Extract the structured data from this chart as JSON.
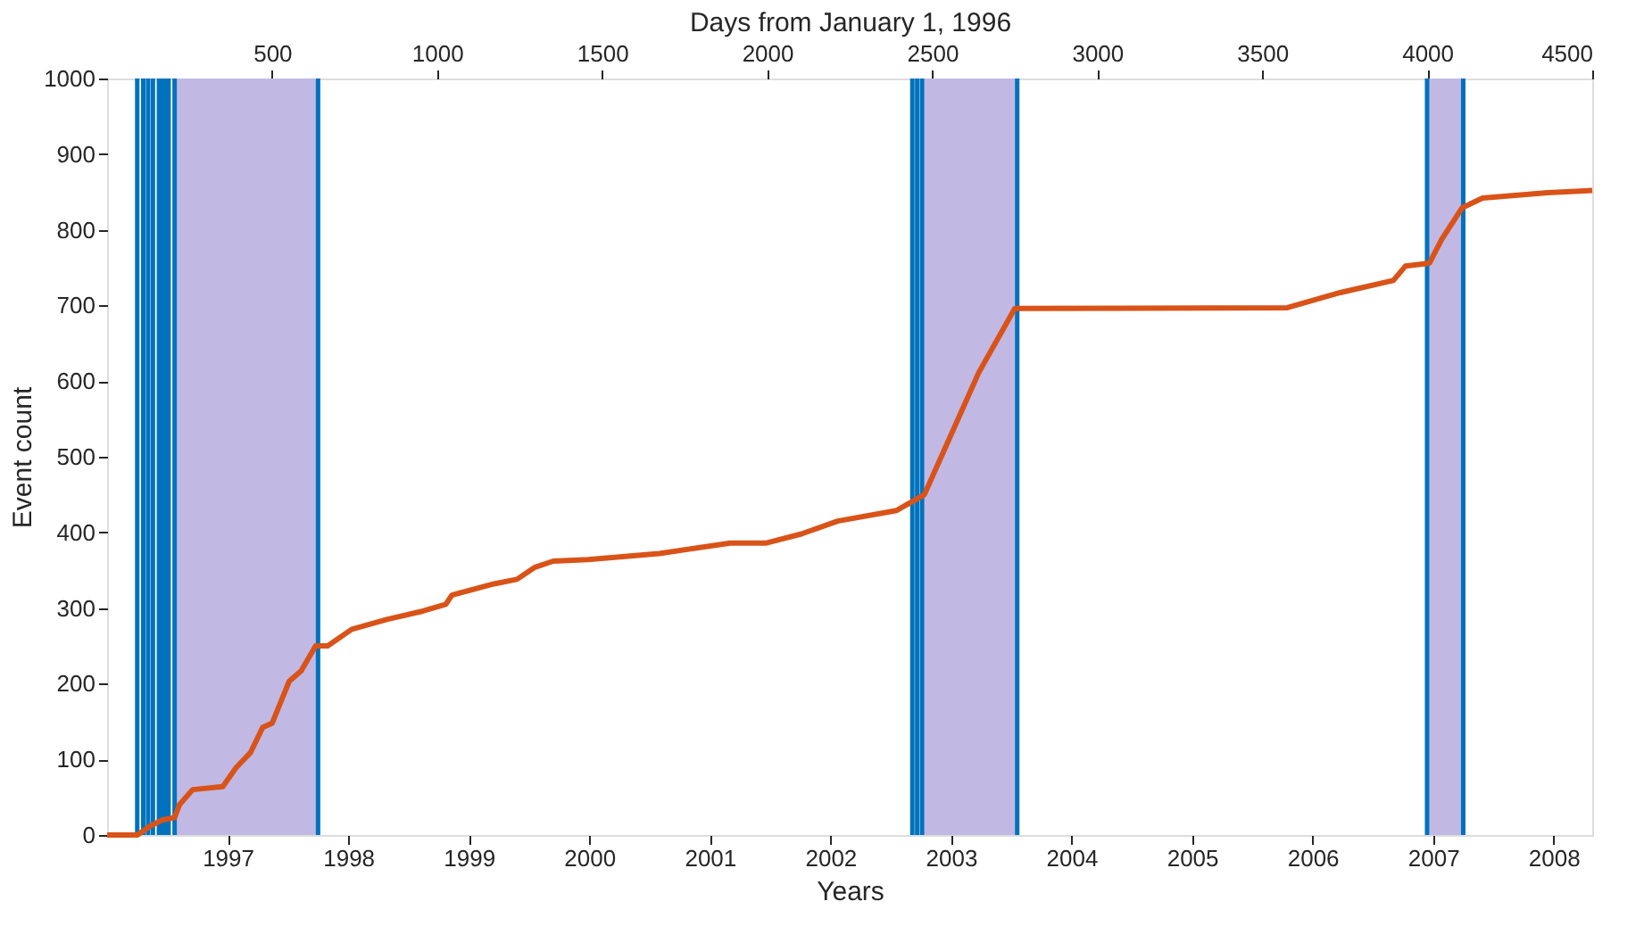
{
  "chart_data": {
    "type": "line",
    "xlabel": "Years",
    "x2label": "Days from January 1, 1996",
    "ylabel": "Event count",
    "xlim": [
      1996,
      2008.32
    ],
    "xticks": [
      1997,
      1998,
      1999,
      2000,
      2001,
      2002,
      2003,
      2004,
      2005,
      2006,
      2007,
      2008
    ],
    "x2lim": [
      0,
      4500
    ],
    "x2ticks": [
      500,
      1000,
      1500,
      2000,
      2500,
      3000,
      3500,
      4000,
      4500
    ],
    "ylim": [
      0,
      1000
    ],
    "yticks": [
      0,
      100,
      200,
      300,
      400,
      500,
      600,
      700,
      800,
      900,
      1000
    ],
    "grid": false,
    "x": [
      1996.0,
      1996.25,
      1996.36,
      1996.46,
      1996.56,
      1996.6,
      1996.71,
      1996.96,
      1997.07,
      1997.19,
      1997.29,
      1997.37,
      1997.51,
      1997.61,
      1997.73,
      1997.83,
      1998.03,
      1998.32,
      1998.62,
      1998.81,
      1998.86,
      1999.21,
      1999.4,
      1999.55,
      1999.7,
      1999.99,
      2000.58,
      2001.17,
      2001.47,
      2001.76,
      2002.06,
      2002.55,
      2002.78,
      2003.23,
      2003.53,
      2005.79,
      2006.23,
      2006.67,
      2006.77,
      2006.97,
      2007.07,
      2007.24,
      2007.41,
      2007.95,
      2008.32
    ],
    "series": [
      {
        "color": "#d95319",
        "values": [
          0,
          0,
          12,
          20,
          23,
          40,
          60,
          64,
          89,
          109,
          142,
          148,
          203,
          217,
          250,
          250,
          272,
          285,
          296,
          305,
          317,
          332,
          338,
          354,
          362,
          364,
          372,
          386,
          386,
          398,
          415,
          429,
          450,
          611,
          696,
          697,
          717,
          733,
          752,
          756,
          787,
          829,
          842,
          849,
          852
        ]
      }
    ],
    "bands": [
      {
        "axis": "x",
        "from": 1996.56,
        "to": 1997.75,
        "color": "#c1b9e4"
      },
      {
        "axis": "x",
        "from": 2002.76,
        "to": 2003.55,
        "color": "#c1b9e4"
      },
      {
        "axis": "x",
        "from": 2006.95,
        "to": 2007.25,
        "color": "#c1b9e4"
      }
    ],
    "ref_lines": [
      {
        "axis": "x",
        "value": 1996.25,
        "color": "#0072bd"
      },
      {
        "axis": "x",
        "value": 1996.3,
        "color": "#0072bd"
      },
      {
        "axis": "x",
        "value": 1996.34,
        "color": "#0072bd"
      },
      {
        "axis": "x",
        "value": 1996.38,
        "color": "#0072bd"
      },
      {
        "axis": "x",
        "value": 1996.43,
        "color": "#0072bd"
      },
      {
        "axis": "x",
        "value": 1996.46,
        "color": "#0072bd"
      },
      {
        "axis": "x",
        "value": 1996.49,
        "color": "#0072bd"
      },
      {
        "axis": "x",
        "value": 1996.51,
        "color": "#0072bd"
      },
      {
        "axis": "x",
        "value": 1996.56,
        "color": "#0072bd"
      },
      {
        "axis": "x",
        "value": 1997.75,
        "color": "#0072bd"
      },
      {
        "axis": "x",
        "value": 2002.68,
        "color": "#0072bd"
      },
      {
        "axis": "x",
        "value": 2002.72,
        "color": "#0072bd"
      },
      {
        "axis": "x",
        "value": 2002.76,
        "color": "#0072bd"
      },
      {
        "axis": "x",
        "value": 2003.55,
        "color": "#0072bd"
      },
      {
        "axis": "x",
        "value": 2006.95,
        "color": "#0072bd"
      },
      {
        "axis": "x",
        "value": 2007.25,
        "color": "#0072bd"
      }
    ]
  }
}
